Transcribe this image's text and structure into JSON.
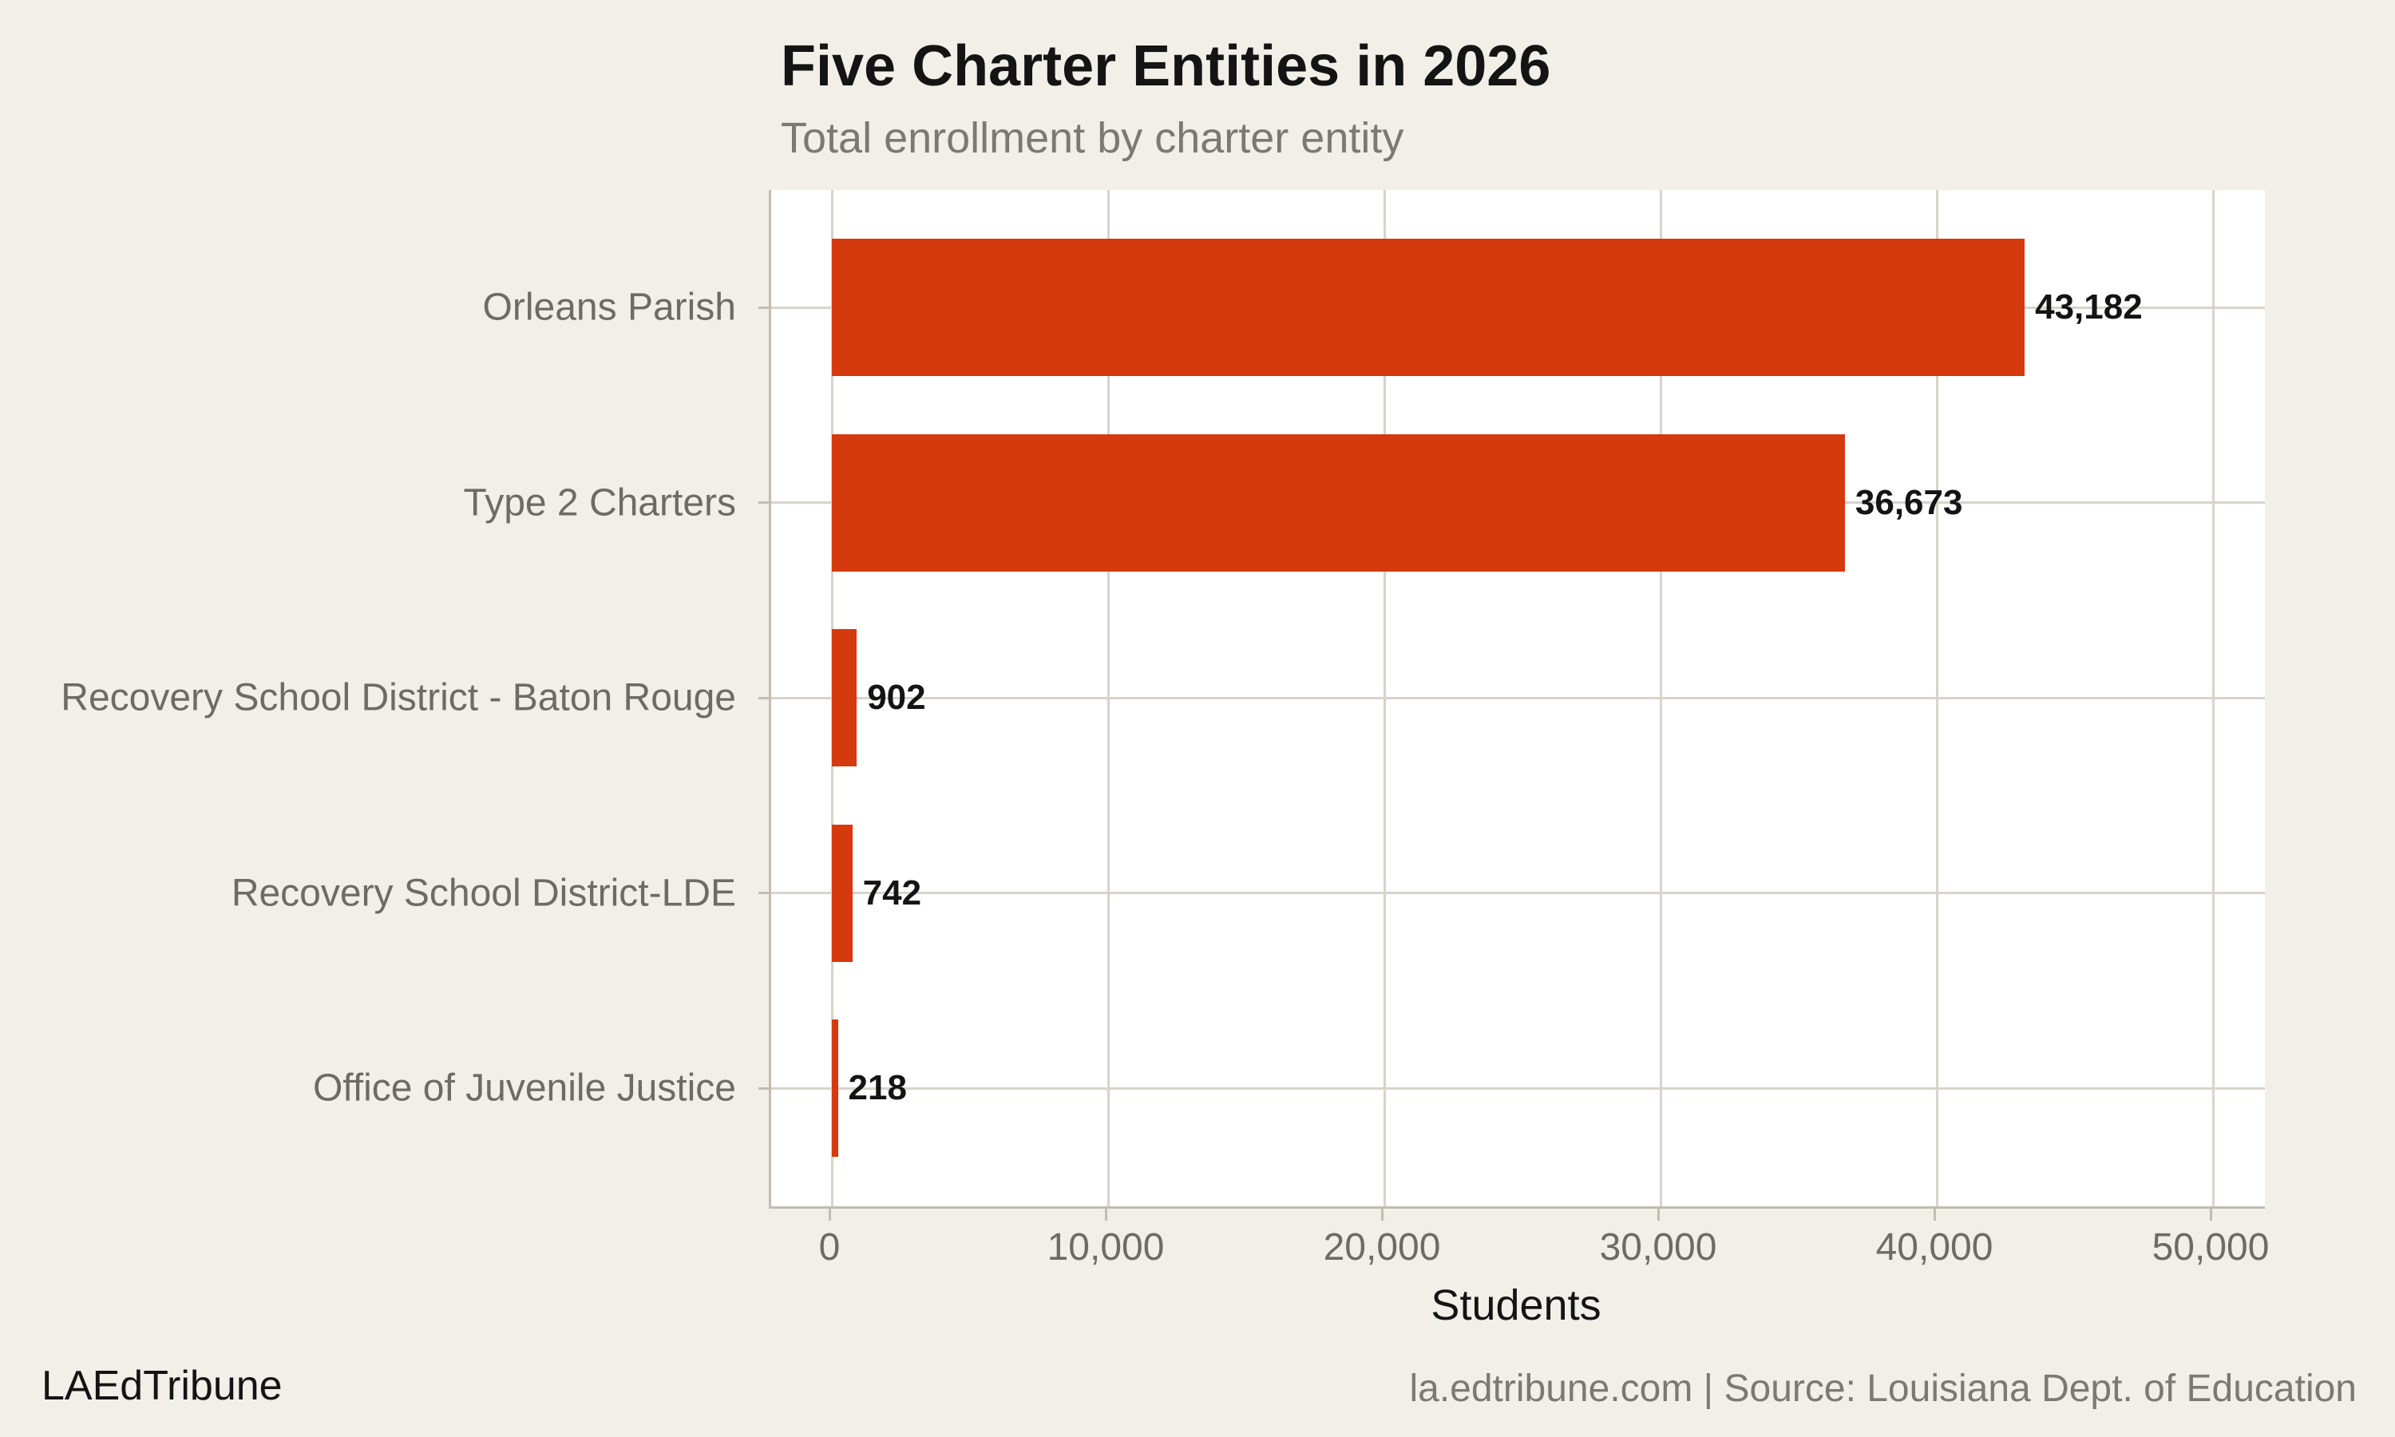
{
  "header": {
    "title": "Five Charter Entities in 2026",
    "subtitle": "Total enrollment by charter entity"
  },
  "footer": {
    "brand": "LAEdTribune",
    "source": "la.edtribune.com | Source: Louisiana Dept. of Education"
  },
  "chart_data": {
    "type": "bar",
    "orientation": "horizontal",
    "title": "Five Charter Entities in 2026",
    "subtitle": "Total enrollment by charter entity",
    "xlabel": "Students",
    "ylabel": "",
    "categories": [
      "Orleans Parish",
      "Type 2 Charters",
      "Recovery School District - Baton Rouge",
      "Recovery School District-LDE",
      "Office of Juvenile Justice"
    ],
    "values": [
      43182,
      36673,
      902,
      742,
      218
    ],
    "value_labels": [
      "43,182",
      "36,673",
      "902",
      "742",
      "218"
    ],
    "x_ticks": [
      {
        "value": 0,
        "label": "0"
      },
      {
        "value": 10000,
        "label": "10,000"
      },
      {
        "value": 20000,
        "label": "20,000"
      },
      {
        "value": 30000,
        "label": "30,000"
      },
      {
        "value": 40000,
        "label": "40,000"
      },
      {
        "value": 50000,
        "label": "50,000"
      }
    ],
    "xlim": [
      0,
      50000
    ],
    "grid": true,
    "legend": false,
    "colors": {
      "bar": "#d43a0e",
      "background": "#f2efe9",
      "panel": "#ffffff",
      "gridline": "#d9d3c9",
      "axis_line": "#c2bcb1",
      "axis_text": "#6e6a64",
      "title_text": "#141414",
      "subtitle_text": "#7c7975"
    }
  }
}
